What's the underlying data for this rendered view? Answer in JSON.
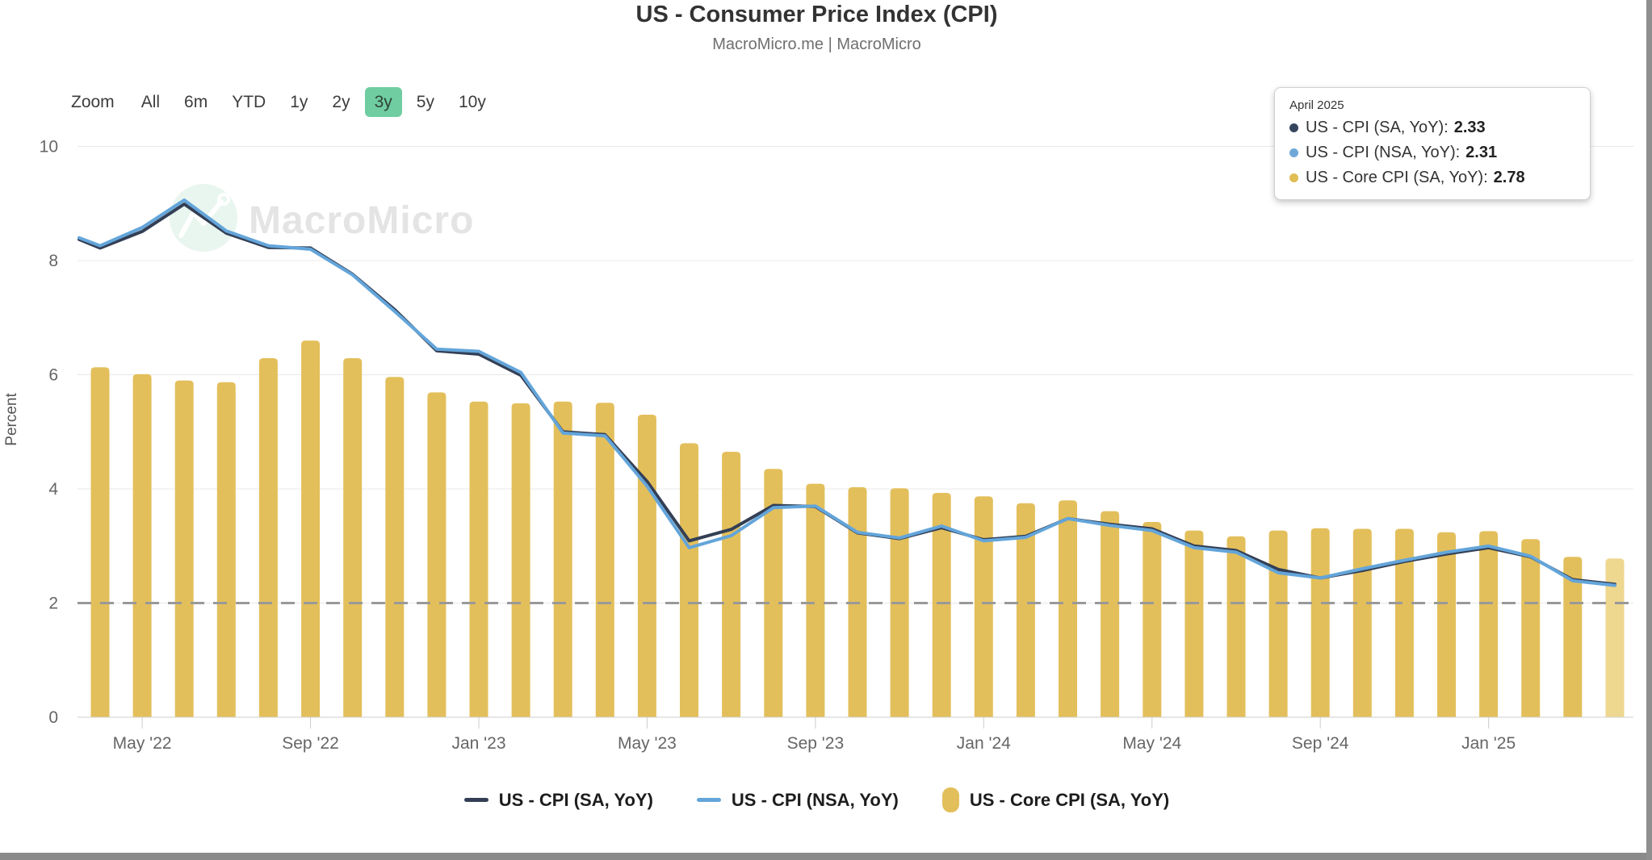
{
  "header": {
    "title": "US - Consumer Price Index (CPI)",
    "subtitle": "MacroMicro.me | MacroMicro"
  },
  "range_selector": {
    "zoom_label": "Zoom",
    "selected_bg": "#6fcda1",
    "buttons": [
      {
        "label": "All",
        "selected": false
      },
      {
        "label": "6m",
        "selected": false
      },
      {
        "label": "YTD",
        "selected": false
      },
      {
        "label": "1y",
        "selected": false
      },
      {
        "label": "2y",
        "selected": false
      },
      {
        "label": "3y",
        "selected": true
      },
      {
        "label": "5y",
        "selected": false
      },
      {
        "label": "10y",
        "selected": false
      }
    ]
  },
  "tooltip": {
    "date": "April 2025",
    "rows": [
      {
        "label": "US - CPI (SA, YoY):",
        "value": "2.33",
        "color": "#36455e"
      },
      {
        "label": "US - CPI (NSA, YoY):",
        "value": "2.31",
        "color": "#6fa8d8"
      },
      {
        "label": "US - Core CPI (SA, YoY):",
        "value": "2.78",
        "color": "#e0bd55"
      }
    ]
  },
  "legend": {
    "items": [
      {
        "label": "US - CPI (SA, YoY)",
        "marker": "line",
        "color": "#333f55"
      },
      {
        "label": "US - CPI (NSA, YoY)",
        "marker": "line",
        "color": "#63a5da"
      },
      {
        "label": "US - Core CPI (SA, YoY)",
        "marker": "bar",
        "color": "#e3bf5b"
      }
    ]
  },
  "watermark": {
    "text": "MacroMicro"
  },
  "scrollbars": {
    "bottom_color": "#8a8a8a",
    "right_color": "#8f8f8f"
  },
  "chart_data": {
    "type": "mixed",
    "title": "US - Consumer Price Index (CPI)",
    "subtitle": "MacroMicro.me | MacroMicro",
    "xlabel": "",
    "ylabel": "Percent",
    "ylim": [
      0,
      10
    ],
    "y_ticks": [
      0,
      2,
      4,
      6,
      8,
      10
    ],
    "grid": true,
    "legend_position": "bottom",
    "reference_line": {
      "value": 2,
      "style": "dashed",
      "color": "#999999"
    },
    "categories": [
      "Apr 2022",
      "May 2022",
      "Jun 2022",
      "Jul 2022",
      "Aug 2022",
      "Sep 2022",
      "Oct 2022",
      "Nov 2022",
      "Dec 2022",
      "Jan 2023",
      "Feb 2023",
      "Mar 2023",
      "Apr 2023",
      "May 2023",
      "Jun 2023",
      "Jul 2023",
      "Aug 2023",
      "Sep 2023",
      "Oct 2023",
      "Nov 2023",
      "Dec 2023",
      "Jan 2024",
      "Feb 2024",
      "Mar 2024",
      "Apr 2024",
      "May 2024",
      "Jun 2024",
      "Jul 2024",
      "Aug 2024",
      "Sep 2024",
      "Oct 2024",
      "Nov 2024",
      "Dec 2024",
      "Jan 2025",
      "Feb 2025",
      "Mar 2025",
      "Apr 2025"
    ],
    "x_tick_labels": [
      "May '22",
      "Sep '22",
      "Jan '23",
      "May '23",
      "Sep '23",
      "Jan '24",
      "May '24",
      "Sep '24",
      "Jan '25"
    ],
    "x_tick_indices": [
      1,
      5,
      9,
      13,
      17,
      21,
      25,
      29,
      33
    ],
    "series": [
      {
        "name": "US - CPI (SA, YoY)",
        "type": "line",
        "color": "#333f55",
        "values": [
          8.22,
          8.51,
          8.99,
          8.48,
          8.23,
          8.22,
          7.76,
          7.14,
          6.42,
          6.36,
          5.99,
          5.0,
          4.95,
          4.13,
          3.09,
          3.29,
          3.71,
          3.69,
          3.23,
          3.13,
          3.32,
          3.11,
          3.17,
          3.48,
          3.38,
          3.3,
          3.0,
          2.92,
          2.59,
          2.44,
          2.57,
          2.73,
          2.86,
          2.97,
          2.81,
          2.41,
          2.33
        ]
      },
      {
        "name": "US - CPI (NSA, YoY)",
        "type": "line",
        "color": "#63a5da",
        "values": [
          8.26,
          8.58,
          9.06,
          8.52,
          8.26,
          8.2,
          7.75,
          7.11,
          6.45,
          6.41,
          6.04,
          4.98,
          4.93,
          4.05,
          2.97,
          3.18,
          3.67,
          3.7,
          3.24,
          3.14,
          3.35,
          3.09,
          3.15,
          3.48,
          3.36,
          3.27,
          2.97,
          2.89,
          2.53,
          2.44,
          2.6,
          2.75,
          2.89,
          3.0,
          2.82,
          2.39,
          2.31
        ]
      },
      {
        "name": "US - Core CPI (SA, YoY)",
        "type": "bar",
        "color": "#e3bf5b",
        "hover_color": "#eed78f",
        "values": [
          6.13,
          6.01,
          5.9,
          5.87,
          6.29,
          6.6,
          6.29,
          5.96,
          5.69,
          5.53,
          5.5,
          5.53,
          5.51,
          5.3,
          4.8,
          4.65,
          4.35,
          4.09,
          4.03,
          4.01,
          3.93,
          3.87,
          3.75,
          3.8,
          3.61,
          3.42,
          3.27,
          3.17,
          3.27,
          3.31,
          3.3,
          3.3,
          3.24,
          3.26,
          3.12,
          2.81,
          2.78
        ]
      }
    ],
    "edge_start": {
      "cpi_sa": 8.37,
      "cpi_nsa": 8.4
    },
    "hovered_index": 36,
    "hovered_label": "April 2025"
  }
}
